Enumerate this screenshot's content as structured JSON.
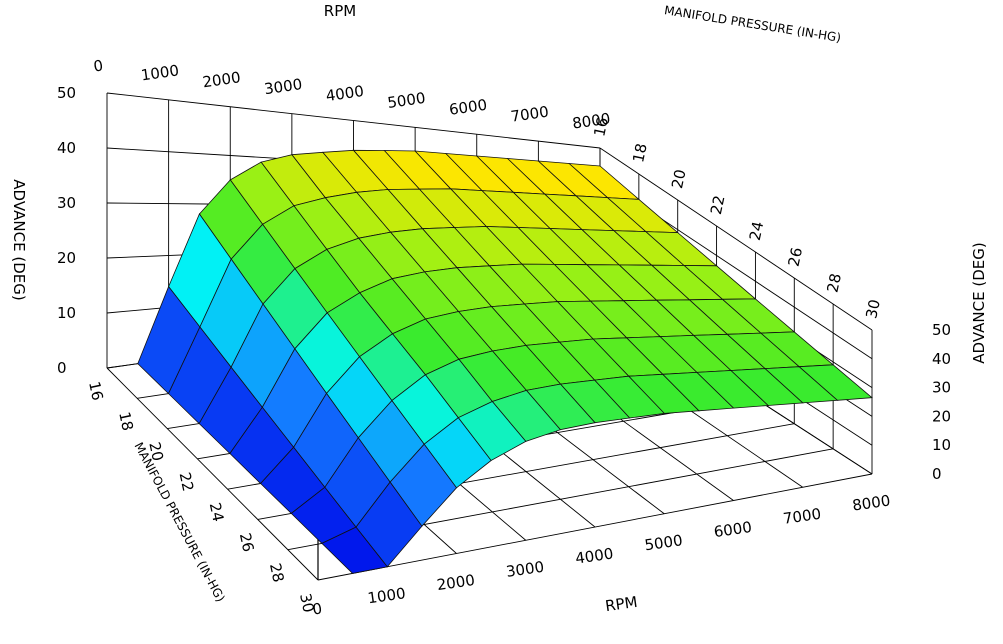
{
  "chart_data": {
    "type": "surface",
    "title": "",
    "x_axis": {
      "label": "RPM",
      "ticks": [
        0,
        1000,
        2000,
        3000,
        4000,
        5000,
        6000,
        7000,
        8000
      ],
      "range": [
        0,
        8000
      ]
    },
    "y_axis": {
      "label": "MANIFOLD PRESSURE (IN-HG)",
      "ticks": [
        16,
        18,
        20,
        22,
        24,
        26,
        28,
        30
      ],
      "range": [
        16,
        30
      ]
    },
    "z_axis": {
      "label": "ADVANCE (DEG)",
      "ticks": [
        0,
        10,
        20,
        30,
        40,
        50
      ],
      "range": [
        0,
        50
      ]
    },
    "rpm": [
      500,
      1000,
      1500,
      2000,
      2500,
      3000,
      3500,
      4000,
      4500,
      5000,
      5500,
      6000,
      6500,
      7000,
      7500,
      8000
    ],
    "manifold_pressure": [
      16,
      18,
      20,
      22,
      24,
      26,
      28,
      30
    ],
    "advance": [
      [
        0,
        14,
        28,
        35,
        39,
        41,
        42,
        43,
        43.5,
        44,
        44,
        44,
        44,
        44,
        44,
        44
      ],
      [
        0,
        12,
        25,
        32,
        36,
        38,
        39.5,
        40.5,
        41,
        41.5,
        41.5,
        41.5,
        41.5,
        41.5,
        41.5,
        41.5
      ],
      [
        0,
        10,
        22,
        29,
        33,
        35.5,
        37,
        38,
        38.5,
        39,
        39,
        39,
        39,
        39,
        39,
        39
      ],
      [
        0,
        8,
        19,
        26,
        30,
        33,
        34.5,
        35.5,
        36,
        36.5,
        36.5,
        36.5,
        36.5,
        36.5,
        36.5,
        36.5
      ],
      [
        0,
        6,
        16,
        23,
        27.5,
        30.5,
        32,
        33,
        33.5,
        34,
        34,
        34,
        34,
        34,
        34,
        34
      ],
      [
        0,
        4,
        13,
        20,
        25,
        28,
        29.5,
        30.5,
        31,
        31.5,
        31.5,
        31.5,
        31.5,
        31.5,
        31.5,
        31.5
      ],
      [
        0,
        2,
        10,
        17,
        22,
        25,
        27,
        28,
        28.5,
        29,
        29,
        29,
        29,
        29,
        29,
        29
      ],
      [
        0,
        0,
        7,
        14,
        19,
        22.5,
        24.5,
        25.5,
        26,
        26.5,
        26.5,
        26.5,
        26.5,
        26.5,
        26.5,
        26.5
      ]
    ]
  }
}
